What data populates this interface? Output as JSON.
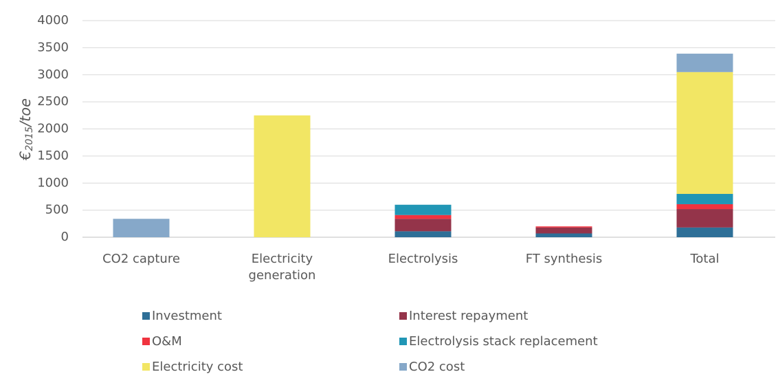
{
  "chart_data": {
    "type": "stacked_bar",
    "y_label_parts": [
      "€",
      "2015",
      "/toe"
    ],
    "categories": [
      "CO2 capture",
      "Electricity generation",
      "Electrolysis",
      "FT synthesis",
      "Total"
    ],
    "series": [
      {
        "name": "Investment",
        "color": "#2e6f97",
        "values": [
          0,
          0,
          110,
          70,
          180
        ]
      },
      {
        "name": "Interest repayment",
        "color": "#94344a",
        "values": [
          0,
          0,
          230,
          110,
          340
        ]
      },
      {
        "name": "O&M",
        "color": "#f0333f",
        "values": [
          0,
          0,
          70,
          20,
          90
        ]
      },
      {
        "name": "Electrolysis stack replacement",
        "color": "#2196b5",
        "values": [
          0,
          0,
          190,
          0,
          190
        ]
      },
      {
        "name": "Electricity cost",
        "color": "#f2e664",
        "values": [
          0,
          2250,
          0,
          0,
          2250
        ]
      },
      {
        "name": "CO2 cost",
        "color": "#86a8c9",
        "values": [
          340,
          0,
          0,
          0,
          340
        ]
      }
    ],
    "ylim": [
      0,
      4000
    ],
    "yticks": [
      0,
      500,
      1000,
      1500,
      2000,
      2500,
      3000,
      3500,
      4000
    ],
    "grid": true
  }
}
